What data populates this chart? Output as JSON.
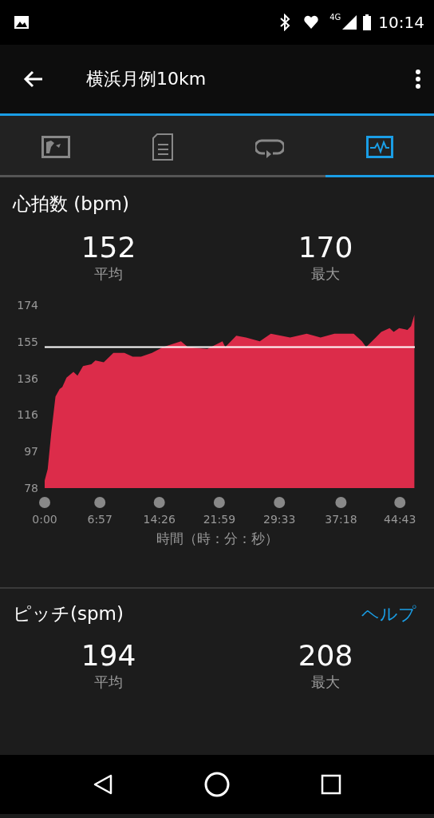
{
  "chart_data": [
    {
      "type": "other",
      "title": "横浜月例10km",
      "annotations": [
        "4G",
        "10:14"
      ]
    },
    {
      "type": "area",
      "title": "心拍数 (bpm)",
      "annotations": [
        "152",
        "平均",
        "170",
        "最大"
      ],
      "xlabel": "時間（時：分：秒）",
      "x": [
        0,
        0.38,
        0.83,
        1.36,
        1.88,
        2.22,
        2.75,
        3.62,
        4.13,
        4.83,
        5.87,
        6.39,
        7.44,
        8.65,
        10.04,
        11.08,
        12.12,
        13.51,
        14.9,
        17.16,
        18.03,
        20.47,
        22.38,
        22.73,
        24.12,
        25.34,
        27.08,
        28.47,
        30.9,
        32.99,
        34.73,
        36.47,
        38.9,
        39.94,
        40.46,
        41.68,
        42.37,
        43.42,
        43.94,
        44.63,
        45.67,
        46.12,
        46.54
      ],
      "series": [
        {
          "color": "#dc2c4a",
          "values": [
            82,
            88,
            107,
            126,
            130,
            131,
            136,
            139,
            137,
            142,
            143,
            145,
            144,
            149,
            149,
            147,
            147,
            149,
            152,
            155,
            152,
            151,
            155,
            152,
            158,
            157,
            155,
            159,
            157,
            159,
            157,
            159,
            159,
            155,
            152,
            157,
            160,
            162,
            160,
            162,
            161,
            163,
            169
          ]
        }
      ],
      "xlim": [
        0,
        46.6
      ],
      "xticks": [
        {
          "value": 0,
          "label": "0:00"
        },
        {
          "value": 6.95,
          "label": "6:57"
        },
        {
          "value": 14.433,
          "label": "14:26"
        },
        {
          "value": 21.983,
          "label": "21:59"
        },
        {
          "value": 29.55,
          "label": "29:33"
        },
        {
          "value": 37.3,
          "label": "37:18"
        },
        {
          "value": 44.717,
          "label": "44:43"
        }
      ],
      "ylim": [
        78,
        174
      ],
      "yticks": [
        78,
        {
          "value": 97.2,
          "label": "97"
        },
        {
          "value": 116.4,
          "label": "116"
        },
        {
          "value": 135.6,
          "label": "136"
        },
        {
          "value": 154.8,
          "label": "155"
        },
        174
      ],
      "ref_lines": [
        {
          "axis": "y",
          "value": 152,
          "color": "#ffffff"
        }
      ],
      "grid": false,
      "legend": false
    },
    {
      "type": "other",
      "title": "ピッチ(spm)",
      "annotations": [
        "ヘルプ",
        "194",
        "平均",
        "208",
        "最大"
      ]
    }
  ]
}
